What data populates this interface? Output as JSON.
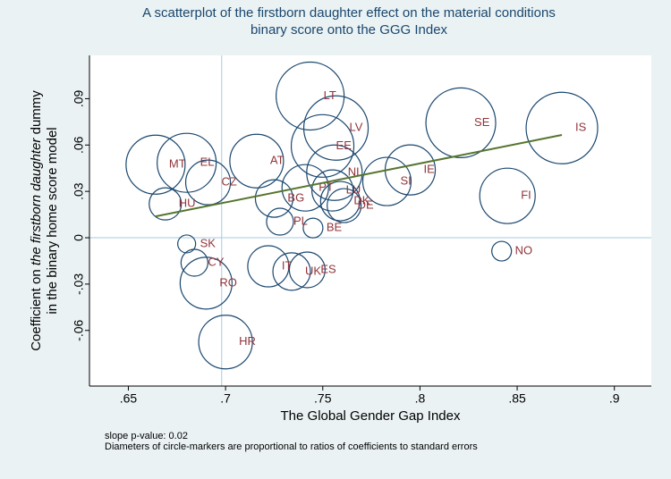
{
  "chart_data": {
    "type": "scatter",
    "title": [
      "A scatterplot of the firstborn daughter effect on the material conditions",
      "binary score onto the GGG Index"
    ],
    "xlabel": "The Global Gender Gap Index",
    "ylabel": [
      [
        "Coefficient on ",
        "the firstborn daughter",
        " dummy"
      ],
      "in the binary home score model"
    ],
    "notes": [
      "slope p-value: 0.02",
      "Diameters of circle-markers are proportional to ratios of coefficients to standard errors"
    ],
    "xlim": [
      0.63,
      0.919
    ],
    "ylim": [
      -0.096,
      0.118
    ],
    "xticks": [
      {
        "value": 0.65,
        "label": ".65"
      },
      {
        "value": 0.7,
        "label": ".7"
      },
      {
        "value": 0.75,
        "label": ".75"
      },
      {
        "value": 0.8,
        "label": ".8"
      },
      {
        "value": 0.85,
        "label": ".85"
      },
      {
        "value": 0.9,
        "label": ".9"
      }
    ],
    "yticks": [
      {
        "value": -0.06,
        "label": "-.06"
      },
      {
        "value": -0.03,
        "label": "-.03"
      },
      0,
      {
        "value": 0.03,
        "label": ".03"
      },
      {
        "value": 0.06,
        "label": ".06"
      },
      {
        "value": 0.09,
        "label": ".09"
      }
    ],
    "xref": 0.698,
    "yref": 0,
    "marker_color": "#1a476f",
    "label_color": "#90353b",
    "ref_color": "#a6cbe0",
    "points": {
      "labels": [
        "LT",
        "LV",
        "EE",
        "SE",
        "IS",
        "IE",
        "SI",
        "NL",
        "AT",
        "MT",
        "EL",
        "CZ",
        "HU",
        "BG",
        "PT",
        "LU",
        "DK",
        "DE",
        "PL",
        "BE",
        "FI",
        "NO",
        "SK",
        "CY",
        "RO",
        "IT",
        "UK",
        "ES",
        "HR"
      ],
      "x": [
        0.7435,
        0.7568,
        0.7499,
        0.821,
        0.873,
        0.795,
        0.783,
        0.756,
        0.716,
        0.664,
        0.68,
        0.691,
        0.669,
        0.725,
        0.741,
        0.755,
        0.759,
        0.761,
        0.728,
        0.745,
        0.845,
        0.842,
        0.68,
        0.684,
        0.69,
        0.722,
        0.734,
        0.742,
        0.7
      ],
      "y": [
        0.0917,
        0.071,
        0.0594,
        0.0744,
        0.071,
        0.0439,
        0.0364,
        0.0421,
        0.0496,
        0.0473,
        0.0485,
        0.0358,
        0.0219,
        0.0254,
        0.0323,
        0.0306,
        0.0237,
        0.0208,
        0.0104,
        0.0063,
        0.0271,
        -0.0087,
        -0.004,
        -0.0162,
        -0.0294,
        -0.0185,
        -0.0219,
        -0.0208,
        -0.0675
      ],
      "sizes": [
        3.8,
        3.6,
        3.5,
        3.9,
        4.0,
        2.8,
        2.7,
        3.1,
        3.0,
        3.3,
        3.3,
        2.5,
        1.8,
        2.1,
        2.6,
        2.3,
        2.2,
        1.9,
        1.5,
        1.1,
        3.1,
        1.1,
        1.0,
        1.5,
        2.9,
        2.3,
        2.1,
        2.0,
        3.0
      ]
    },
    "fit_line": {
      "color": "#55752f",
      "x": [
        0.664,
        0.873
      ],
      "y": [
        0.0138,
        0.0665
      ]
    }
  }
}
